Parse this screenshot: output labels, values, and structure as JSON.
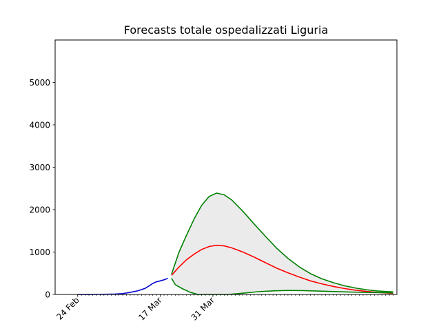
{
  "chart_data": {
    "type": "line",
    "title": "Forecasts totale ospedalizzati Liguria",
    "xlabel": "",
    "ylabel": "",
    "x_axis": {
      "unit": "date",
      "range": [
        "2020-02-18",
        "2020-05-19"
      ],
      "tick_labels": [
        {
          "date": "2020-02-24",
          "label": "24 Feb"
        },
        {
          "date": "2020-03-17",
          "label": "17 Mar"
        },
        {
          "date": "2020-03-31",
          "label": "31 Mar"
        }
      ],
      "minor_ticks": {
        "start": "2020-02-24",
        "end": "2020-05-18",
        "step_days": 1
      }
    },
    "y_axis": {
      "range": [
        0,
        6000
      ],
      "ticks": [
        0,
        1000,
        2000,
        3000,
        4000,
        5000
      ]
    },
    "grid": false,
    "legend": "none",
    "series": [
      {
        "role": "observed",
        "color": "#0000cc",
        "points": [
          [
            "2020-02-24",
            0
          ],
          [
            "2020-02-26",
            0
          ],
          [
            "2020-02-28",
            2
          ],
          [
            "2020-03-01",
            4
          ],
          [
            "2020-03-03",
            6
          ],
          [
            "2020-03-05",
            10
          ],
          [
            "2020-03-07",
            20
          ],
          [
            "2020-03-09",
            50
          ],
          [
            "2020-03-11",
            85
          ],
          [
            "2020-03-13",
            145
          ],
          [
            "2020-03-14",
            200
          ],
          [
            "2020-03-15",
            260
          ],
          [
            "2020-03-16",
            300
          ],
          [
            "2020-03-17",
            320
          ],
          [
            "2020-03-18",
            345
          ],
          [
            "2020-03-19",
            380
          ]
        ]
      },
      {
        "role": "forecast",
        "color": "#ff0000",
        "points": [
          [
            "2020-03-20",
            450
          ],
          [
            "2020-03-22",
            650
          ],
          [
            "2020-03-24",
            820
          ],
          [
            "2020-03-26",
            950
          ],
          [
            "2020-03-28",
            1060
          ],
          [
            "2020-03-30",
            1130
          ],
          [
            "2020-04-01",
            1160
          ],
          [
            "2020-04-03",
            1145
          ],
          [
            "2020-04-05",
            1100
          ],
          [
            "2020-04-08",
            1000
          ],
          [
            "2020-04-11",
            880
          ],
          [
            "2020-04-14",
            750
          ],
          [
            "2020-04-17",
            620
          ],
          [
            "2020-04-20",
            510
          ],
          [
            "2020-04-23",
            410
          ],
          [
            "2020-04-26",
            320
          ],
          [
            "2020-04-29",
            250
          ],
          [
            "2020-05-02",
            190
          ],
          [
            "2020-05-05",
            140
          ],
          [
            "2020-05-08",
            100
          ],
          [
            "2020-05-11",
            70
          ],
          [
            "2020-05-14",
            45
          ],
          [
            "2020-05-18",
            25
          ]
        ]
      },
      {
        "role": "upper_bound",
        "color": "#008000",
        "points": [
          [
            "2020-03-20",
            480
          ],
          [
            "2020-03-22",
            1000
          ],
          [
            "2020-03-24",
            1400
          ],
          [
            "2020-03-26",
            1780
          ],
          [
            "2020-03-28",
            2100
          ],
          [
            "2020-03-30",
            2310
          ],
          [
            "2020-04-01",
            2390
          ],
          [
            "2020-04-03",
            2350
          ],
          [
            "2020-04-05",
            2230
          ],
          [
            "2020-04-08",
            1960
          ],
          [
            "2020-04-11",
            1660
          ],
          [
            "2020-04-14",
            1370
          ],
          [
            "2020-04-17",
            1090
          ],
          [
            "2020-04-20",
            850
          ],
          [
            "2020-04-23",
            650
          ],
          [
            "2020-04-26",
            490
          ],
          [
            "2020-04-29",
            370
          ],
          [
            "2020-05-02",
            280
          ],
          [
            "2020-05-05",
            205
          ],
          [
            "2020-05-08",
            150
          ],
          [
            "2020-05-11",
            110
          ],
          [
            "2020-05-14",
            80
          ],
          [
            "2020-05-18",
            60
          ]
        ]
      },
      {
        "role": "lower_bound",
        "color": "#008000",
        "points": [
          [
            "2020-03-20",
            380
          ],
          [
            "2020-03-21",
            230
          ],
          [
            "2020-03-23",
            130
          ],
          [
            "2020-03-25",
            50
          ],
          [
            "2020-03-27",
            0
          ],
          [
            "2020-04-04",
            0
          ],
          [
            "2020-04-08",
            30
          ],
          [
            "2020-04-12",
            65
          ],
          [
            "2020-04-16",
            85
          ],
          [
            "2020-04-20",
            95
          ],
          [
            "2020-04-24",
            90
          ],
          [
            "2020-04-28",
            80
          ],
          [
            "2020-05-02",
            68
          ],
          [
            "2020-05-06",
            58
          ],
          [
            "2020-05-10",
            50
          ],
          [
            "2020-05-14",
            44
          ],
          [
            "2020-05-18",
            38
          ]
        ]
      }
    ],
    "band": {
      "between": [
        "upper_bound",
        "lower_bound"
      ],
      "color": "#ebebeb"
    }
  }
}
